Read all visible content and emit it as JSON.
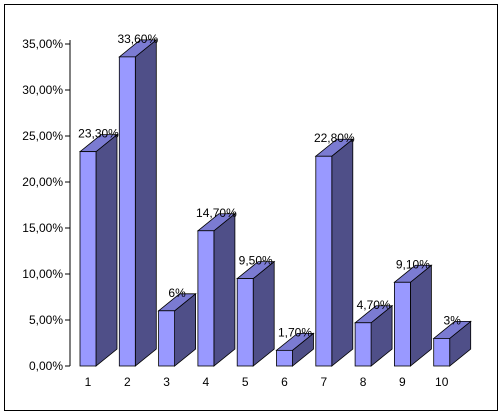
{
  "chart_data": {
    "type": "bar",
    "categories": [
      "1",
      "2",
      "3",
      "4",
      "5",
      "6",
      "7",
      "8",
      "9",
      "10"
    ],
    "values": [
      23.3,
      33.6,
      6,
      14.7,
      9.5,
      1.7,
      22.8,
      4.7,
      9.1,
      3
    ],
    "data_labels": [
      "23,30%",
      "33,60%",
      "6%",
      "14,70%",
      "9,50%",
      "1,70%",
      "22,80%",
      "4,70%",
      "9,10%",
      "3%"
    ],
    "y_ticks": [
      0,
      5,
      10,
      15,
      20,
      25,
      30,
      35
    ],
    "y_tick_labels": [
      "0,00%",
      "5,00%",
      "10,00%",
      "15,00%",
      "20,00%",
      "25,00%",
      "30,00%",
      "35,00%"
    ],
    "ylim": [
      0,
      35
    ],
    "grid": false,
    "legend": false,
    "style": "3d-column",
    "colors": {
      "bar_front": "#9999ff",
      "bar_side": "#4f4f88",
      "bar_top": "#7b7bd2",
      "axis": "#000000",
      "frame": "#000000"
    }
  }
}
